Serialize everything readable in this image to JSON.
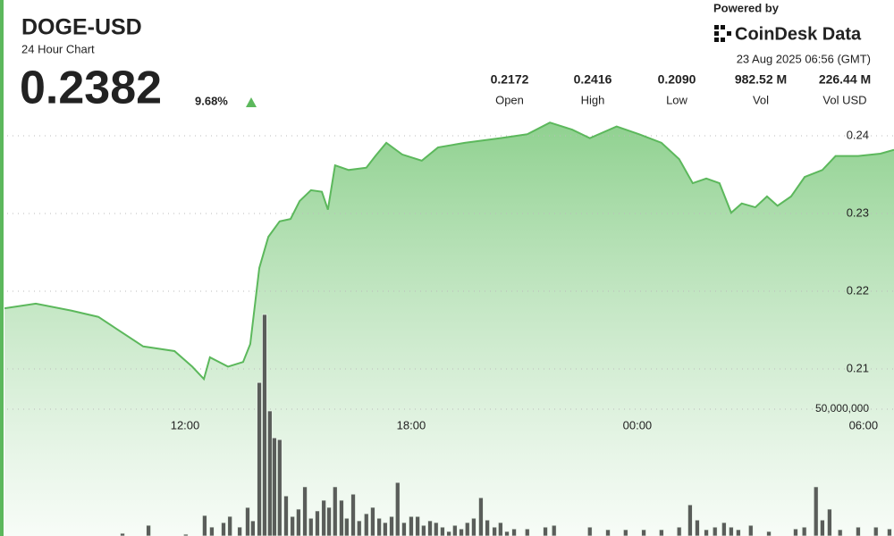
{
  "chart_data": {
    "type": "line",
    "title": "DOGE-USD",
    "subtitle": "24 Hour Chart",
    "last_price": 0.2382,
    "change": "9.68%",
    "source_label": "Powered by",
    "source": "CoinDesk Data",
    "timestamp": "23 Aug 2025 06:56 (GMT)",
    "stats": [
      {
        "value": "0.2172",
        "label": "Open"
      },
      {
        "value": "0.2416",
        "label": "High"
      },
      {
        "value": "0.2090",
        "label": "Low"
      },
      {
        "value": "982.52 M",
        "label": "Vol"
      },
      {
        "value": "226.44 M",
        "label": "Vol USD"
      }
    ],
    "color": "#5cb85c",
    "x": [
      7.21,
      8.04,
      8.99,
      9.7,
      10.17,
      10.89,
      11.72,
      12.19,
      12.5,
      12.66,
      13.14,
      13.54,
      13.73,
      13.97,
      14.21,
      14.51,
      14.8,
      15.04,
      15.34,
      15.63,
      15.79,
      15.98,
      16.34,
      16.81,
      17.05,
      17.34,
      17.76,
      18.28,
      18.71,
      19.42,
      20.37,
      21.08,
      21.68,
      22.27,
      22.74,
      23.45,
      24.05,
      24.64,
      25.11,
      25.47,
      25.83,
      26.18,
      26.49,
      26.77,
      27.13,
      27.44,
      27.72,
      28.08,
      28.44,
      28.91,
      29.26,
      29.86,
      30.45,
      30.81
    ],
    "values": [
      0.2178,
      0.2184,
      0.2175,
      0.2167,
      0.2152,
      0.2129,
      0.2123,
      0.2103,
      0.2087,
      0.2115,
      0.2103,
      0.2109,
      0.2132,
      0.223,
      0.227,
      0.229,
      0.2293,
      0.2316,
      0.233,
      0.2328,
      0.2305,
      0.2362,
      0.2356,
      0.2359,
      0.2374,
      0.2391,
      0.2376,
      0.2368,
      0.2385,
      0.2391,
      0.2397,
      0.2402,
      0.2417,
      0.2408,
      0.2397,
      0.2412,
      0.2402,
      0.2391,
      0.237,
      0.2339,
      0.2345,
      0.2339,
      0.2301,
      0.2313,
      0.2308,
      0.2322,
      0.231,
      0.2322,
      0.2347,
      0.2356,
      0.2374,
      0.2374,
      0.2377,
      0.2382
    ],
    "xlim": [
      7.09,
      30.81
    ],
    "xticks": [
      {
        "value": 12,
        "label": "12:00"
      },
      {
        "value": 18,
        "label": "18:00"
      },
      {
        "value": 24,
        "label": "00:00"
      },
      {
        "value": 30,
        "label": "06:00"
      }
    ],
    "ylim": [
      0.20345,
      0.24253
    ],
    "yticks": [
      0.21,
      0.22,
      0.23,
      0.24
    ],
    "grid": true,
    "volume": {
      "type": "bar",
      "color": "#5a5d5a",
      "x": [
        10.34,
        11.03,
        12.02,
        12.52,
        12.71,
        13.02,
        13.19,
        13.45,
        13.66,
        13.8,
        13.97,
        14.11,
        14.25,
        14.37,
        14.51,
        14.68,
        14.85,
        15.01,
        15.18,
        15.34,
        15.51,
        15.68,
        15.82,
        15.98,
        16.15,
        16.29,
        16.46,
        16.62,
        16.81,
        16.98,
        17.15,
        17.31,
        17.48,
        17.64,
        17.81,
        18.0,
        18.17,
        18.33,
        18.5,
        18.66,
        18.83,
        19.0,
        19.16,
        19.33,
        19.49,
        19.66,
        19.85,
        20.02,
        20.21,
        20.37,
        20.54,
        20.73,
        21.08,
        21.56,
        21.79,
        22.74,
        23.22,
        23.69,
        24.17,
        24.64,
        25.11,
        25.4,
        25.59,
        25.83,
        26.06,
        26.3,
        26.49,
        26.68,
        27.01,
        27.49,
        28.2,
        28.43,
        28.74,
        28.91,
        29.1,
        29.38,
        29.86,
        30.33,
        30.69
      ],
      "values": [
        1060000,
        4220000,
        700000,
        8100000,
        3520000,
        5280000,
        7740000,
        3520000,
        11260000,
        5980000,
        60500000,
        87300000,
        49300000,
        38700000,
        38000000,
        15800000,
        7700000,
        10600000,
        19400000,
        7000000,
        9900000,
        14100000,
        11300000,
        19400000,
        14100000,
        7000000,
        16500000,
        6000000,
        8800000,
        11300000,
        7000000,
        5300000,
        7700000,
        21100000,
        5300000,
        7700000,
        7700000,
        4200000,
        6000000,
        5300000,
        3500000,
        1800000,
        4200000,
        2800000,
        5300000,
        7000000,
        15100000,
        6300000,
        3500000,
        5300000,
        1800000,
        2800000,
        2800000,
        3500000,
        4200000,
        3500000,
        2500000,
        2500000,
        2500000,
        2500000,
        3500000,
        12300000,
        6300000,
        2500000,
        3500000,
        5300000,
        3500000,
        2500000,
        4200000,
        1800000,
        2800000,
        3500000,
        19400000,
        6300000,
        10600000,
        2500000,
        3500000,
        3500000,
        2800000
      ]
    },
    "y2lim": [
      0,
      105600000
    ],
    "y2ticks": [
      {
        "value": 50000000,
        "label": "50,000,000"
      }
    ]
  }
}
